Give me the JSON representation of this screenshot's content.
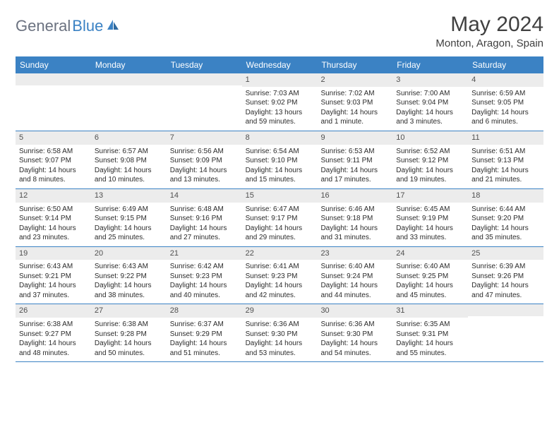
{
  "logo": {
    "gray": "General",
    "blue": "Blue"
  },
  "title": "May 2024",
  "location": "Monton, Aragon, Spain",
  "header_bg": "#3b82c4",
  "dayNames": [
    "Sunday",
    "Monday",
    "Tuesday",
    "Wednesday",
    "Thursday",
    "Friday",
    "Saturday"
  ],
  "weeks": [
    [
      {
        "n": "",
        "sr": "",
        "ss": "",
        "dl": ""
      },
      {
        "n": "",
        "sr": "",
        "ss": "",
        "dl": ""
      },
      {
        "n": "",
        "sr": "",
        "ss": "",
        "dl": ""
      },
      {
        "n": "1",
        "sr": "Sunrise: 7:03 AM",
        "ss": "Sunset: 9:02 PM",
        "dl": "Daylight: 13 hours and 59 minutes."
      },
      {
        "n": "2",
        "sr": "Sunrise: 7:02 AM",
        "ss": "Sunset: 9:03 PM",
        "dl": "Daylight: 14 hours and 1 minute."
      },
      {
        "n": "3",
        "sr": "Sunrise: 7:00 AM",
        "ss": "Sunset: 9:04 PM",
        "dl": "Daylight: 14 hours and 3 minutes."
      },
      {
        "n": "4",
        "sr": "Sunrise: 6:59 AM",
        "ss": "Sunset: 9:05 PM",
        "dl": "Daylight: 14 hours and 6 minutes."
      }
    ],
    [
      {
        "n": "5",
        "sr": "Sunrise: 6:58 AM",
        "ss": "Sunset: 9:07 PM",
        "dl": "Daylight: 14 hours and 8 minutes."
      },
      {
        "n": "6",
        "sr": "Sunrise: 6:57 AM",
        "ss": "Sunset: 9:08 PM",
        "dl": "Daylight: 14 hours and 10 minutes."
      },
      {
        "n": "7",
        "sr": "Sunrise: 6:56 AM",
        "ss": "Sunset: 9:09 PM",
        "dl": "Daylight: 14 hours and 13 minutes."
      },
      {
        "n": "8",
        "sr": "Sunrise: 6:54 AM",
        "ss": "Sunset: 9:10 PM",
        "dl": "Daylight: 14 hours and 15 minutes."
      },
      {
        "n": "9",
        "sr": "Sunrise: 6:53 AM",
        "ss": "Sunset: 9:11 PM",
        "dl": "Daylight: 14 hours and 17 minutes."
      },
      {
        "n": "10",
        "sr": "Sunrise: 6:52 AM",
        "ss": "Sunset: 9:12 PM",
        "dl": "Daylight: 14 hours and 19 minutes."
      },
      {
        "n": "11",
        "sr": "Sunrise: 6:51 AM",
        "ss": "Sunset: 9:13 PM",
        "dl": "Daylight: 14 hours and 21 minutes."
      }
    ],
    [
      {
        "n": "12",
        "sr": "Sunrise: 6:50 AM",
        "ss": "Sunset: 9:14 PM",
        "dl": "Daylight: 14 hours and 23 minutes."
      },
      {
        "n": "13",
        "sr": "Sunrise: 6:49 AM",
        "ss": "Sunset: 9:15 PM",
        "dl": "Daylight: 14 hours and 25 minutes."
      },
      {
        "n": "14",
        "sr": "Sunrise: 6:48 AM",
        "ss": "Sunset: 9:16 PM",
        "dl": "Daylight: 14 hours and 27 minutes."
      },
      {
        "n": "15",
        "sr": "Sunrise: 6:47 AM",
        "ss": "Sunset: 9:17 PM",
        "dl": "Daylight: 14 hours and 29 minutes."
      },
      {
        "n": "16",
        "sr": "Sunrise: 6:46 AM",
        "ss": "Sunset: 9:18 PM",
        "dl": "Daylight: 14 hours and 31 minutes."
      },
      {
        "n": "17",
        "sr": "Sunrise: 6:45 AM",
        "ss": "Sunset: 9:19 PM",
        "dl": "Daylight: 14 hours and 33 minutes."
      },
      {
        "n": "18",
        "sr": "Sunrise: 6:44 AM",
        "ss": "Sunset: 9:20 PM",
        "dl": "Daylight: 14 hours and 35 minutes."
      }
    ],
    [
      {
        "n": "19",
        "sr": "Sunrise: 6:43 AM",
        "ss": "Sunset: 9:21 PM",
        "dl": "Daylight: 14 hours and 37 minutes."
      },
      {
        "n": "20",
        "sr": "Sunrise: 6:43 AM",
        "ss": "Sunset: 9:22 PM",
        "dl": "Daylight: 14 hours and 38 minutes."
      },
      {
        "n": "21",
        "sr": "Sunrise: 6:42 AM",
        "ss": "Sunset: 9:23 PM",
        "dl": "Daylight: 14 hours and 40 minutes."
      },
      {
        "n": "22",
        "sr": "Sunrise: 6:41 AM",
        "ss": "Sunset: 9:23 PM",
        "dl": "Daylight: 14 hours and 42 minutes."
      },
      {
        "n": "23",
        "sr": "Sunrise: 6:40 AM",
        "ss": "Sunset: 9:24 PM",
        "dl": "Daylight: 14 hours and 44 minutes."
      },
      {
        "n": "24",
        "sr": "Sunrise: 6:40 AM",
        "ss": "Sunset: 9:25 PM",
        "dl": "Daylight: 14 hours and 45 minutes."
      },
      {
        "n": "25",
        "sr": "Sunrise: 6:39 AM",
        "ss": "Sunset: 9:26 PM",
        "dl": "Daylight: 14 hours and 47 minutes."
      }
    ],
    [
      {
        "n": "26",
        "sr": "Sunrise: 6:38 AM",
        "ss": "Sunset: 9:27 PM",
        "dl": "Daylight: 14 hours and 48 minutes."
      },
      {
        "n": "27",
        "sr": "Sunrise: 6:38 AM",
        "ss": "Sunset: 9:28 PM",
        "dl": "Daylight: 14 hours and 50 minutes."
      },
      {
        "n": "28",
        "sr": "Sunrise: 6:37 AM",
        "ss": "Sunset: 9:29 PM",
        "dl": "Daylight: 14 hours and 51 minutes."
      },
      {
        "n": "29",
        "sr": "Sunrise: 6:36 AM",
        "ss": "Sunset: 9:30 PM",
        "dl": "Daylight: 14 hours and 53 minutes."
      },
      {
        "n": "30",
        "sr": "Sunrise: 6:36 AM",
        "ss": "Sunset: 9:30 PM",
        "dl": "Daylight: 14 hours and 54 minutes."
      },
      {
        "n": "31",
        "sr": "Sunrise: 6:35 AM",
        "ss": "Sunset: 9:31 PM",
        "dl": "Daylight: 14 hours and 55 minutes."
      },
      {
        "n": "",
        "sr": "",
        "ss": "",
        "dl": ""
      }
    ]
  ]
}
